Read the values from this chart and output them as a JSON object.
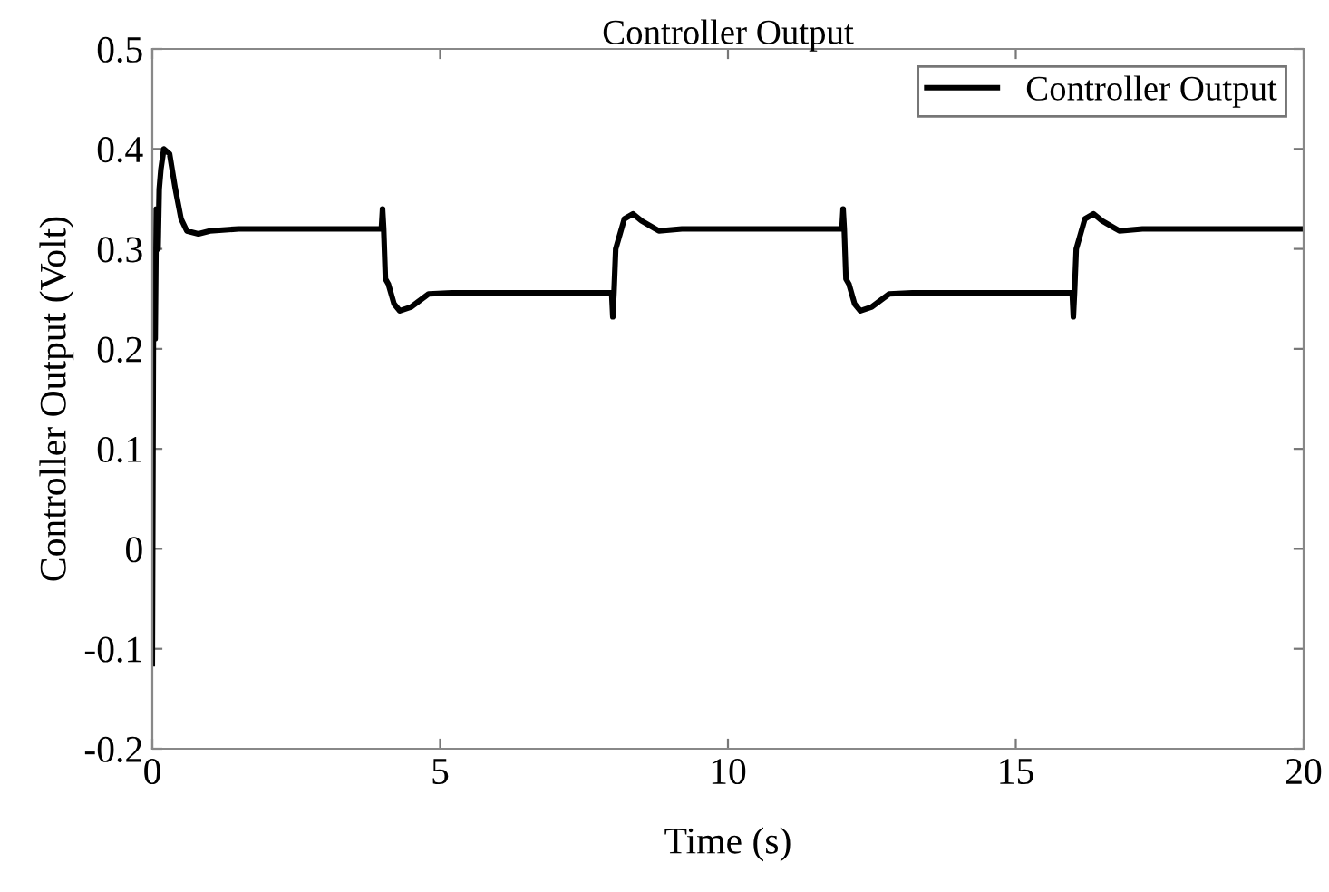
{
  "chart_data": {
    "type": "line",
    "title": "Controller Output",
    "xlabel": "Time (s)",
    "ylabel": "Controller Output (Volt)",
    "xlim": [
      0,
      20
    ],
    "xticks": [
      0,
      5,
      10,
      15,
      20
    ],
    "ylim": [
      -0.2,
      0.5
    ],
    "yticks": [
      -0.2,
      -0.1,
      0,
      0.1,
      0.2,
      0.3,
      0.4,
      0.5
    ],
    "grid": false,
    "legend": "top right",
    "marker": "none",
    "line_style": "solid",
    "series": [
      {
        "name": "Controller Output",
        "color": "#000000",
        "x": [
          0,
          0.02,
          0.05,
          0.07,
          0.1,
          0.12,
          0.15,
          0.2,
          0.3,
          0.4,
          0.5,
          0.6,
          0.8,
          1.0,
          1.5,
          2,
          3,
          3.98,
          4.0,
          4.02,
          4.05,
          4.1,
          4.2,
          4.3,
          4.5,
          4.8,
          5.2,
          6,
          7,
          7.98,
          8.0,
          8.02,
          8.05,
          8.1,
          8.2,
          8.35,
          8.5,
          8.8,
          9.2,
          10,
          11,
          11.98,
          12.0,
          12.02,
          12.05,
          12.1,
          12.2,
          12.3,
          12.5,
          12.8,
          13.2,
          14,
          15,
          15.98,
          16.0,
          16.02,
          16.05,
          16.1,
          16.2,
          16.35,
          16.5,
          16.8,
          17.2,
          18,
          19,
          20
        ],
        "values": [
          -0.115,
          0.24,
          0.21,
          0.34,
          0.3,
          0.36,
          0.38,
          0.4,
          0.395,
          0.36,
          0.33,
          0.318,
          0.315,
          0.318,
          0.32,
          0.32,
          0.32,
          0.32,
          0.34,
          0.32,
          0.27,
          0.265,
          0.245,
          0.238,
          0.242,
          0.255,
          0.256,
          0.256,
          0.256,
          0.256,
          0.232,
          0.256,
          0.3,
          0.31,
          0.33,
          0.335,
          0.328,
          0.318,
          0.32,
          0.32,
          0.32,
          0.32,
          0.34,
          0.32,
          0.27,
          0.265,
          0.245,
          0.238,
          0.242,
          0.255,
          0.256,
          0.256,
          0.256,
          0.256,
          0.232,
          0.256,
          0.3,
          0.31,
          0.33,
          0.335,
          0.328,
          0.318,
          0.32,
          0.32,
          0.32,
          0.32
        ]
      }
    ]
  }
}
